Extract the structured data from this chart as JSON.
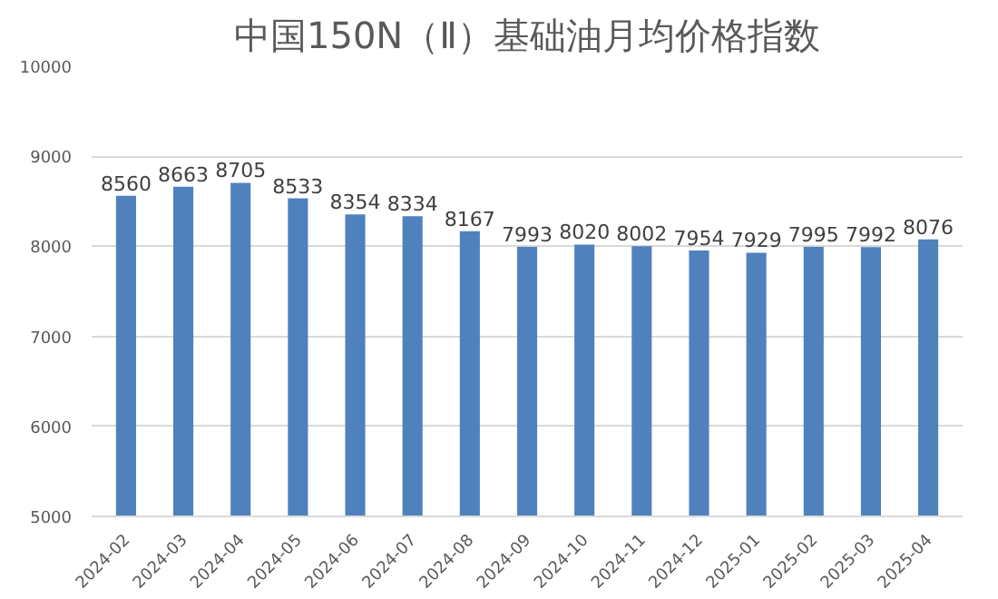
{
  "chart_data": {
    "type": "bar",
    "title": "中国150N（Ⅱ）基础油月均价格指数",
    "categories": [
      "2024-02",
      "2024-03",
      "2024-04",
      "2024-05",
      "2024-06",
      "2024-07",
      "2024-08",
      "2024-09",
      "2024-10",
      "2024-11",
      "2024-12",
      "2025-01",
      "2025-02",
      "2025-03",
      "2025-04"
    ],
    "values": [
      8560,
      8663,
      8705,
      8533,
      8354,
      8334,
      8167,
      7993,
      8020,
      8002,
      7954,
      7929,
      7995,
      7992,
      8076
    ],
    "color": "#4f81bd",
    "ylim": [
      5000,
      10000
    ],
    "yticks": [
      5000,
      6000,
      7000,
      8000,
      9000,
      10000
    ],
    "grid": "y",
    "data_labels": true
  }
}
